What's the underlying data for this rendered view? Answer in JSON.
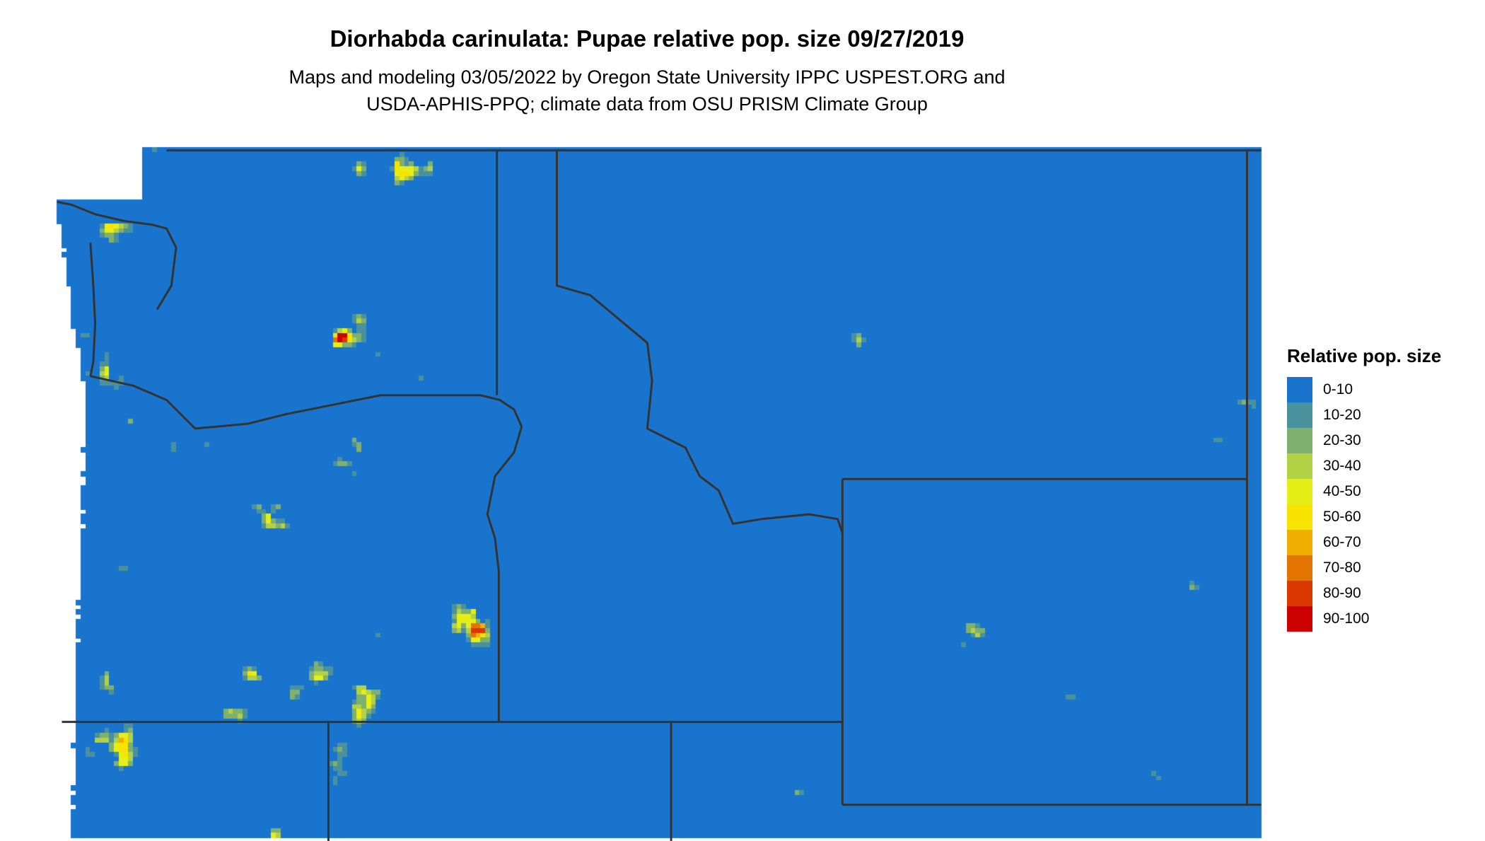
{
  "title": "Diorhabda carinulata: Pupae relative pop. size 09/27/2019",
  "subtitle": [
    "Maps and modeling 03/05/2022 by Oregon State University IPPC USPEST.ORG and",
    "USDA-APHIS-PPQ; climate data from OSU PRISM Climate Group"
  ],
  "legend": {
    "title": "Relative pop. size",
    "items": [
      {
        "label": "0-10",
        "color": "#1874CD"
      },
      {
        "label": "10-20",
        "color": "#4A919E"
      },
      {
        "label": "20-30",
        "color": "#7FB06F"
      },
      {
        "label": "30-40",
        "color": "#B2D145"
      },
      {
        "label": "40-50",
        "color": "#E5EE17"
      },
      {
        "label": "50-60",
        "color": "#F8E200"
      },
      {
        "label": "60-70",
        "color": "#F0AE00"
      },
      {
        "label": "70-80",
        "color": "#E47400"
      },
      {
        "label": "80-90",
        "color": "#DB3800"
      },
      {
        "label": "90-100",
        "color": "#CC0000"
      }
    ]
  }
}
